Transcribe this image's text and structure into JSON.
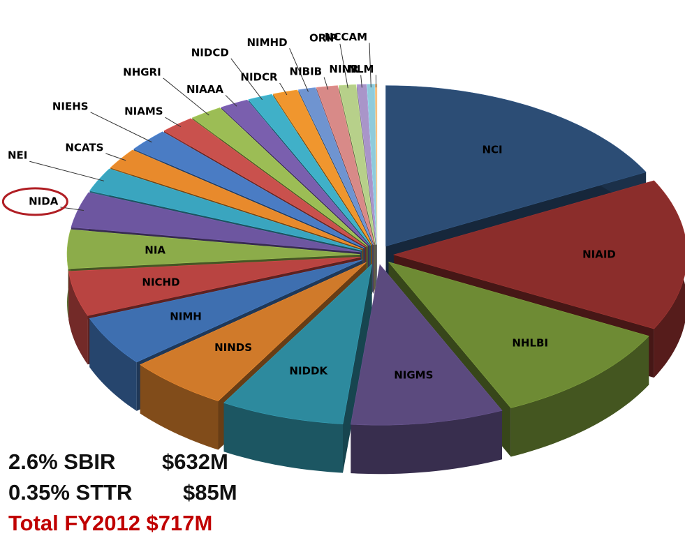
{
  "chart_data": {
    "type": "pie",
    "categories": [
      "NCI",
      "NIAID",
      "NHLBI",
      "NIGMS",
      "NIDDK",
      "NINDS",
      "NIMH",
      "NICHD",
      "NIA",
      "NIDA",
      "NEI",
      "NCATS",
      "NIEHS",
      "NIAMS",
      "NHGRI",
      "NIAAA",
      "NIDCD",
      "NIDCR",
      "NIMHD",
      "NIBIB",
      "ORIP",
      "NINR",
      "NCCAM",
      "NLM"
    ],
    "values": [
      16.5,
      14.5,
      10,
      8,
      6.5,
      5.3,
      4.8,
      4.3,
      3.7,
      3.4,
      2.3,
      2.0,
      2.2,
      1.8,
      1.7,
      1.5,
      1.3,
      1.3,
      0.9,
      1.1,
      0.9,
      0.5,
      0.4,
      0.1
    ],
    "colors": [
      "#2c4d75",
      "#8b2d2b",
      "#6e8b34",
      "#5b4a7e",
      "#2d8a9e",
      "#d07a2a",
      "#3e6fb0",
      "#b94441",
      "#8cac4a",
      "#6d56a0",
      "#3aa5bf",
      "#e88a2c",
      "#4a7cc4",
      "#c9514d",
      "#9cbd55",
      "#7a5fae",
      "#40b0c8",
      "#f0962e",
      "#6f94d0",
      "#d88a88",
      "#b7d08a",
      "#a995c9",
      "#8fcbdb",
      "#f5b77a"
    ],
    "summary": [
      {
        "label": "2.6% SBIR",
        "amount": "$632M"
      },
      {
        "label": "0.35% STTR",
        "amount": "$85M"
      },
      {
        "label": "Total FY2012 $717M"
      }
    ]
  }
}
